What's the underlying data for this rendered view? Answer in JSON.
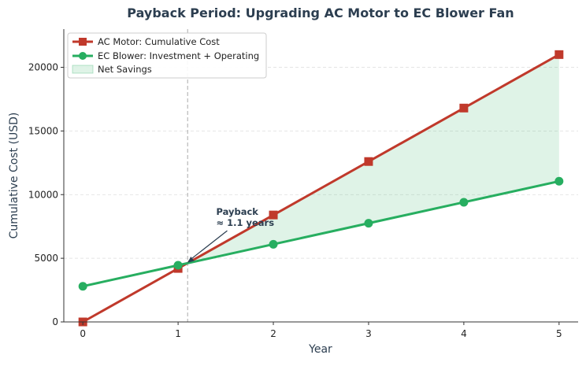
{
  "chart_data": {
    "type": "line",
    "title": "Payback Period: Upgrading AC Motor to EC Blower Fan",
    "xlabel": "Year",
    "ylabel": "Cumulative Cost (USD)",
    "x": [
      0,
      1,
      2,
      3,
      4,
      5
    ],
    "xlim": [
      -0.2,
      5.2
    ],
    "ylim": [
      0,
      23000
    ],
    "xticks": [
      0,
      1,
      2,
      3,
      4,
      5
    ],
    "yticks": [
      0,
      5000,
      10000,
      15000,
      20000
    ],
    "grid": "horizontal dashed",
    "legend_position": "top-left",
    "series": [
      {
        "name": "AC Motor: Cumulative Cost",
        "values": [
          0,
          4200,
          8400,
          12600,
          16800,
          21000
        ],
        "color": "#c0392b",
        "marker": "square"
      },
      {
        "name": "EC Blower: Investment + Operating",
        "values": [
          2800,
          4450,
          6100,
          7750,
          9400,
          11050
        ],
        "color": "#27ae60",
        "marker": "circle"
      }
    ],
    "fill": {
      "name": "Net Savings",
      "color": "#27ae60",
      "from_x": 1.1,
      "to_x": 5
    },
    "payback": {
      "x": 1.1,
      "y": 4650,
      "label_line1": "Payback",
      "label_line2": "≈ 1.1 years",
      "label_x": 1.4,
      "label_y": 8400
    }
  }
}
